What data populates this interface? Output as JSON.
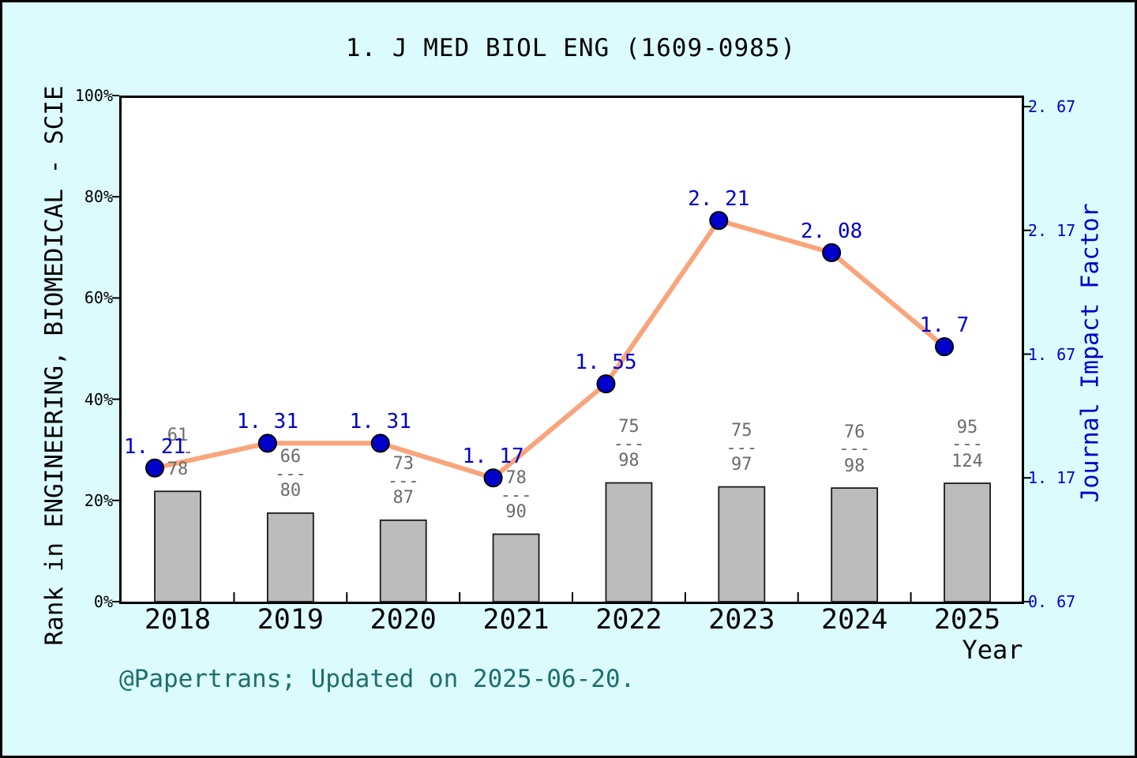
{
  "title": "1. J MED BIOL ENG (1609-0985)",
  "footer": "@Papertrans; Updated on 2025-06-20.",
  "chart_data": {
    "type": "bar+line",
    "x": [
      "2018",
      "2019",
      "2020",
      "2021",
      "2022",
      "2023",
      "2024",
      "2025"
    ],
    "xlabel": "Year",
    "grid": false,
    "legend": false,
    "left_axis": {
      "label": "Rank in ENGINEERING, BIOMEDICAL - SCIE",
      "tick_labels": [
        "0%",
        "20%",
        "40%",
        "60%",
        "80%",
        "100%"
      ],
      "tick_values": [
        0,
        20,
        40,
        60,
        80,
        100
      ],
      "range": [
        0,
        100
      ]
    },
    "right_axis": {
      "label": "Journal Impact Factor",
      "tick_labels": [
        "0. 67",
        "1. 17",
        "1. 67",
        "2. 17",
        "2. 67"
      ],
      "tick_values": [
        0.67,
        1.17,
        1.67,
        2.17,
        2.67
      ],
      "range": [
        0.67,
        2.714
      ]
    },
    "series": [
      {
        "name": "rank-in-category-bars",
        "type": "bar",
        "axis": "left",
        "note": "bar height = (1 - rank/total) as percent; annotation shows rank over total",
        "rank": [
          61,
          66,
          73,
          78,
          75,
          75,
          76,
          95
        ],
        "total": [
          78,
          80,
          87,
          90,
          98,
          97,
          98,
          124
        ],
        "fraction_separator": "---",
        "percent_values": [
          21.79,
          17.5,
          16.09,
          13.33,
          23.47,
          22.68,
          22.45,
          23.39
        ]
      },
      {
        "name": "journal-impact-factor-line",
        "type": "line",
        "axis": "right",
        "values": [
          1.21,
          1.31,
          1.31,
          1.17,
          1.55,
          2.21,
          2.08,
          1.7
        ],
        "labels": [
          "1. 21",
          "1. 31",
          "1. 31",
          "1. 17",
          "1. 55",
          "2. 21",
          "2. 08",
          "1. 7"
        ]
      }
    ]
  },
  "colors": {
    "background": "#DCFBFD",
    "plot_background": "#FFFFFF",
    "frame": "#000000",
    "bar_fill": "#BCBCBC",
    "bar_edge": "#1A1A1A",
    "line": "#F9A47B",
    "marker_fill": "#0000CD",
    "marker_edge": "#000000",
    "value_label_text": "#0000CD",
    "right_axis_text": "#0000CD",
    "fraction_text": "#6B6B6B",
    "footer_text": "#1D6E6E",
    "axis_text": "#000000"
  }
}
